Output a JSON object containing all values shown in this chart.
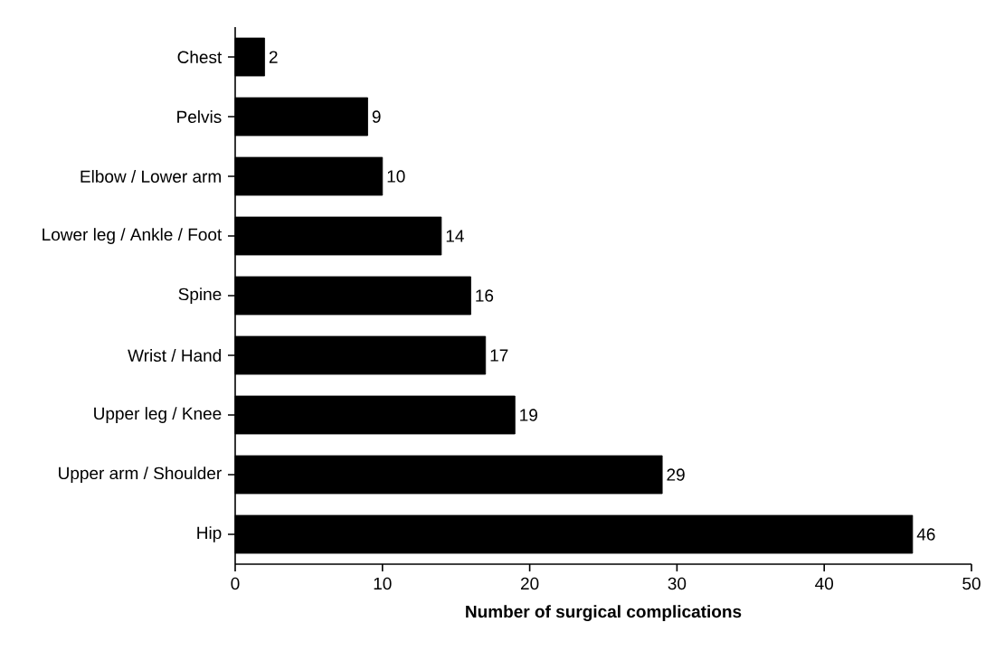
{
  "chart_data": {
    "type": "bar",
    "orientation": "horizontal",
    "xlabel": "Number of surgical complications",
    "categories": [
      "Chest",
      "Pelvis",
      "Elbow / Lower arm",
      "Lower leg / Ankle / Foot",
      "Spine",
      "Wrist / Hand",
      "Upper leg / Knee",
      "Upper arm / Shoulder",
      "Hip"
    ],
    "values": [
      2,
      9,
      10,
      14,
      16,
      17,
      19,
      29,
      46
    ],
    "color": "#000000",
    "xlim": [
      0,
      50
    ],
    "xticks": [
      0,
      10,
      20,
      30,
      40,
      50
    ],
    "data_labels": true,
    "grid": false
  }
}
